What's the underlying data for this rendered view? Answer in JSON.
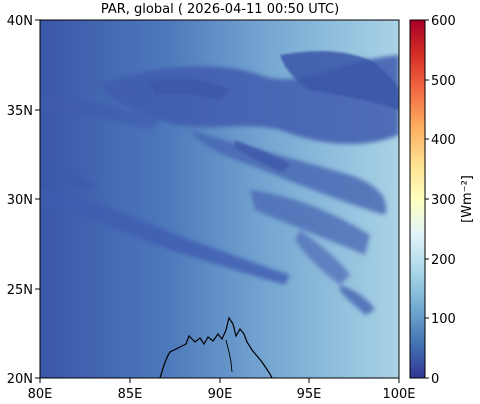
{
  "title": "PAR, global ( 2026-04-11 00:50 UTC)",
  "map": {
    "lon_range": [
      "80E",
      "100E"
    ],
    "lat_range": [
      "20N",
      "40N"
    ],
    "x_ticks": [
      "80E",
      "85E",
      "90E",
      "95E",
      "100E"
    ],
    "y_ticks": [
      "40N",
      "35N",
      "30N",
      "25N",
      "20N"
    ],
    "coastline_color": "#000000"
  },
  "colorbar": {
    "label": "[Wm⁻²]",
    "ticks": [
      "600",
      "500",
      "400",
      "300",
      "200",
      "100",
      "0"
    ],
    "range": [
      0,
      600
    ],
    "colormap": "RdYlBu_r",
    "colors": [
      "#313695",
      "#4575b4",
      "#74add1",
      "#abd9e9",
      "#e0f3f8",
      "#ffffbf",
      "#fee090",
      "#fdae61",
      "#f46d43",
      "#d73027",
      "#a50026"
    ]
  }
}
